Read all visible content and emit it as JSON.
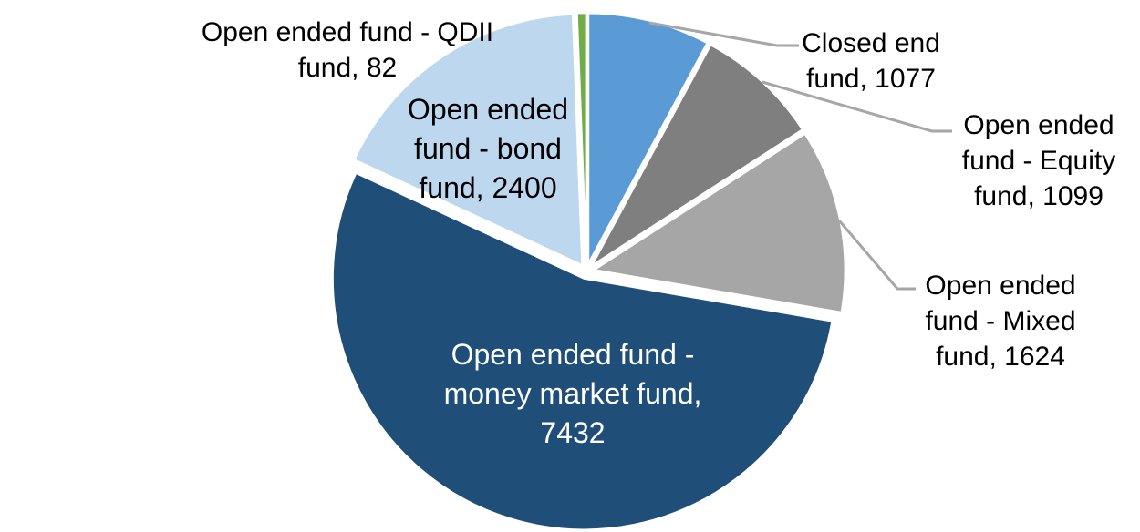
{
  "chart_data": {
    "type": "pie",
    "title": "",
    "background": "#FFFFFF",
    "total": 13714,
    "start_angle_deg": 0,
    "direction": "clockwise",
    "explode": true,
    "leader_line_color": "#A6A6A6",
    "slice_border_color": "#FFFFFF",
    "slices": [
      {
        "name": "closed-end-fund",
        "label": "Closed end fund",
        "value": 1077,
        "color": "#5B9BD5",
        "label_placement": "outside",
        "label_lines": [
          "Closed end",
          "fund, 1077"
        ]
      },
      {
        "name": "open-ended-equity-fund",
        "label": "Open ended fund - Equity fund",
        "value": 1099,
        "color": "#7F7F7F",
        "label_placement": "outside",
        "label_lines": [
          "Open ended",
          "fund - Equity",
          "fund, 1099"
        ]
      },
      {
        "name": "open-ended-mixed-fund",
        "label": "Open ended fund - Mixed fund",
        "value": 1624,
        "color": "#A6A6A6",
        "label_placement": "outside",
        "label_lines": [
          "Open ended",
          "fund - Mixed",
          "fund, 1624"
        ]
      },
      {
        "name": "open-ended-money-market-fund",
        "label": "Open ended fund - money market fund",
        "value": 7432,
        "color": "#1F4E79",
        "label_placement": "inside",
        "label_text_color": "#FFFFFF",
        "label_lines": [
          "Open ended fund -",
          "money market fund,",
          "7432"
        ]
      },
      {
        "name": "open-ended-bond-fund",
        "label": "Open ended fund - bond fund",
        "value": 2400,
        "color": "#BDD7EE",
        "label_placement": "inside",
        "label_text_color": "#000000",
        "label_lines": [
          "Open ended",
          "fund - bond",
          "fund, 2400"
        ]
      },
      {
        "name": "open-ended-qdii-fund",
        "label": "Open ended fund - QDII fund",
        "value": 82,
        "color": "#70AD47",
        "label_placement": "outside",
        "label_lines": [
          "Open ended fund - QDII",
          "fund, 82"
        ]
      }
    ]
  }
}
